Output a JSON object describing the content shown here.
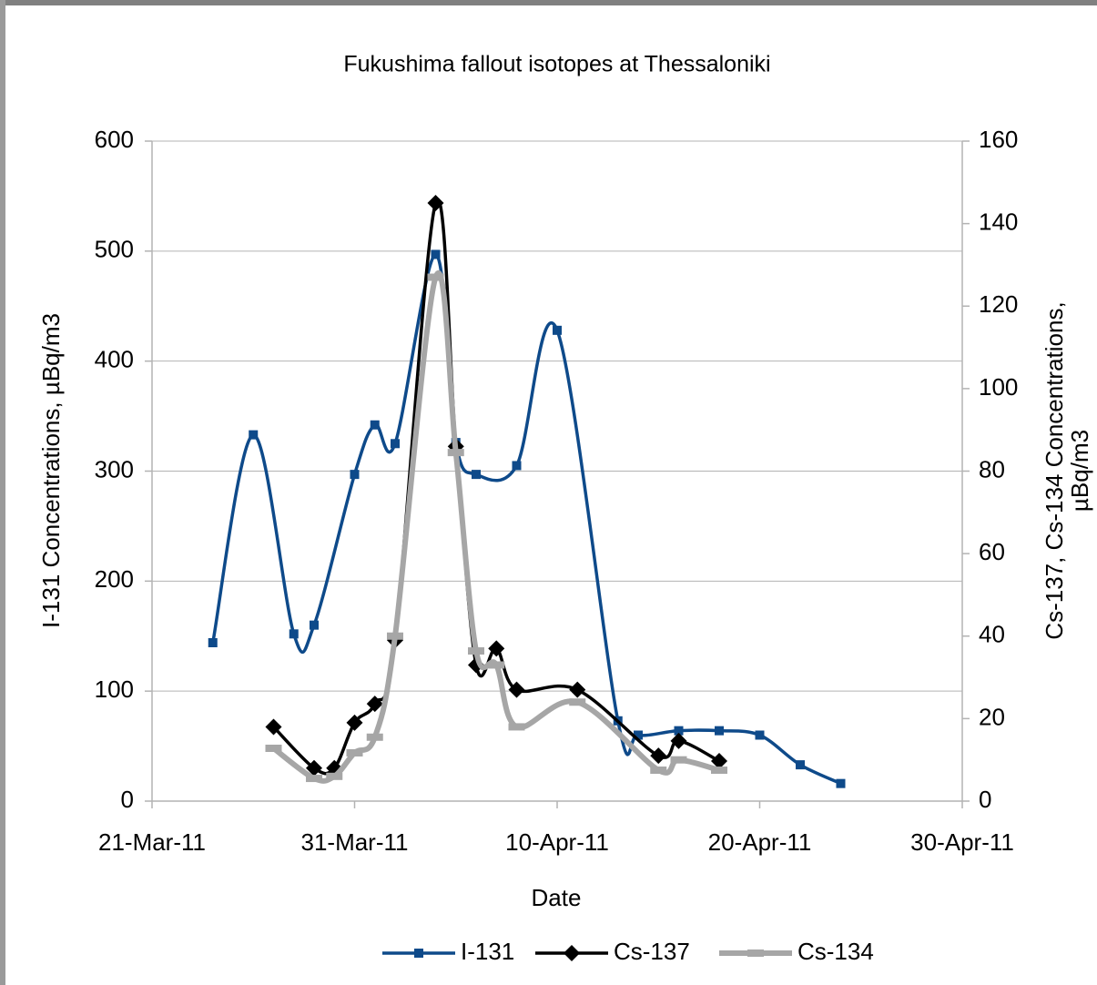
{
  "chart_data": {
    "type": "line",
    "title": "Fukushima fallout isotopes at Thessaloniki",
    "xlabel": "Date",
    "ylabel": "I-131 Concentrations, µBq/m3",
    "y2label": [
      "Cs-137, Cs-134 Concentrations,",
      "µBq/m3"
    ],
    "xlim": [
      "2011-03-21",
      "2011-04-30"
    ],
    "xticks": [
      {
        "value": "2011-03-21",
        "label": "21-Mar-11"
      },
      {
        "value": "2011-03-31",
        "label": "31-Mar-11"
      },
      {
        "value": "2011-04-10",
        "label": "10-Apr-11"
      },
      {
        "value": "2011-04-20",
        "label": "20-Apr-11"
      },
      {
        "value": "2011-04-30",
        "label": "30-Apr-11"
      }
    ],
    "ylim": [
      0,
      600
    ],
    "yticks": [
      0,
      100,
      200,
      300,
      400,
      500,
      600
    ],
    "y2lim": [
      0,
      160
    ],
    "y2ticks": [
      0,
      20,
      40,
      60,
      80,
      100,
      120,
      140,
      160
    ],
    "grid": true,
    "legend": "bottom",
    "series": [
      {
        "name": "I-131",
        "color": "#0e4a8a",
        "marker": "square",
        "axis": "y",
        "x": [
          "2011-03-24",
          "2011-03-26",
          "2011-03-28",
          "2011-03-29",
          "2011-03-31",
          "2011-04-01",
          "2011-04-02",
          "2011-04-04",
          "2011-04-05",
          "2011-04-06",
          "2011-04-08",
          "2011-04-10",
          "2011-04-13",
          "2011-04-14",
          "2011-04-16",
          "2011-04-18",
          "2011-04-20",
          "2011-04-22",
          "2011-04-24"
        ],
        "values": [
          144,
          333,
          152,
          160,
          297,
          342,
          325,
          497,
          326,
          297,
          305,
          428,
          73,
          60,
          64,
          64,
          60,
          33,
          16
        ]
      },
      {
        "name": "Cs-137",
        "color": "#000000",
        "marker": "diamond",
        "axis": "y2",
        "x": [
          "2011-03-27",
          "2011-03-29",
          "2011-03-30",
          "2011-03-31",
          "2011-04-01",
          "2011-04-02",
          "2011-04-04",
          "2011-04-05",
          "2011-04-06",
          "2011-04-07",
          "2011-04-08",
          "2011-04-11",
          "2011-04-15",
          "2011-04-16",
          "2011-04-18"
        ],
        "values": [
          18,
          8,
          8,
          19,
          23.6,
          39,
          145,
          86,
          33,
          37,
          27,
          27,
          11,
          14.6,
          9.7
        ]
      },
      {
        "name": "Cs-134",
        "color": "#a6a6a6",
        "marker": "dash",
        "axis": "y2",
        "x": [
          "2011-03-27",
          "2011-03-29",
          "2011-03-30",
          "2011-03-31",
          "2011-04-01",
          "2011-04-02",
          "2011-04-04",
          "2011-04-05",
          "2011-04-06",
          "2011-04-07",
          "2011-04-08",
          "2011-04-11",
          "2011-04-15",
          "2011-04-16",
          "2011-04-18"
        ],
        "values": [
          12.8,
          5.5,
          6,
          11.7,
          15.5,
          40,
          127,
          84.5,
          36.4,
          33,
          18,
          24,
          7.5,
          10,
          7.5
        ]
      }
    ]
  }
}
